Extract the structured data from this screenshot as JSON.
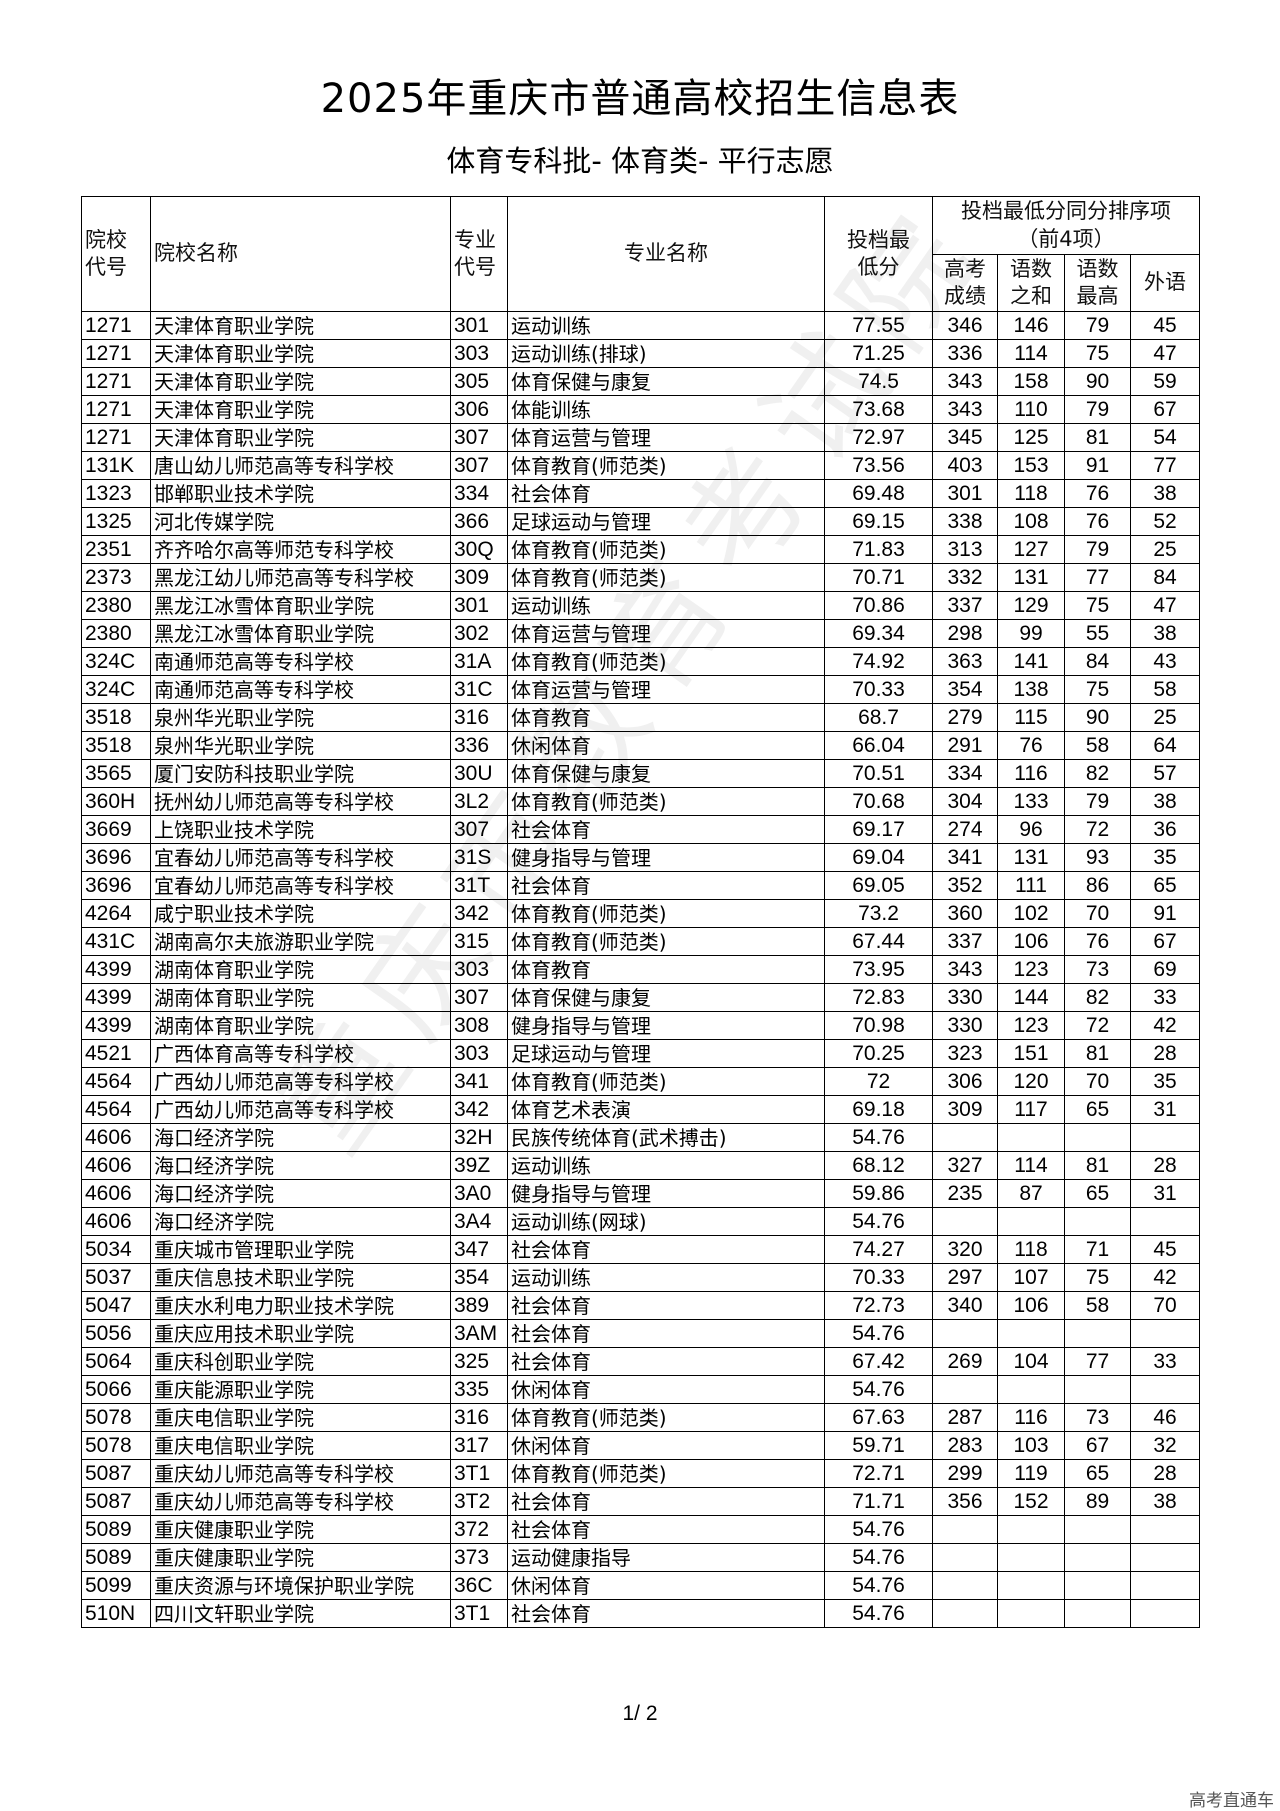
{
  "title": "2025年重庆市普通高校招生信息表",
  "subtitle": "体育专科批- 体育类- 平行志愿",
  "headers": {
    "school_code": "院校代号",
    "school_name": "院校名称",
    "major_code": "专业代号",
    "major_name": "专业名称",
    "min_score": "投档最低分",
    "tiebreak_group": "投档最低分同分排序项（前4项）",
    "gaokao": "高考成绩",
    "chn_math_sum": "语数之和",
    "chn_math_max": "语数最高",
    "foreign": "外语"
  },
  "rows": [
    [
      "1271",
      "天津体育职业学院",
      "301",
      "运动训练",
      "77.55",
      "346",
      "146",
      "79",
      "45"
    ],
    [
      "1271",
      "天津体育职业学院",
      "303",
      "运动训练(排球)",
      "71.25",
      "336",
      "114",
      "75",
      "47"
    ],
    [
      "1271",
      "天津体育职业学院",
      "305",
      "体育保健与康复",
      "74.5",
      "343",
      "158",
      "90",
      "59"
    ],
    [
      "1271",
      "天津体育职业学院",
      "306",
      "体能训练",
      "73.68",
      "343",
      "110",
      "79",
      "67"
    ],
    [
      "1271",
      "天津体育职业学院",
      "307",
      "体育运营与管理",
      "72.97",
      "345",
      "125",
      "81",
      "54"
    ],
    [
      "131K",
      "唐山幼儿师范高等专科学校",
      "307",
      "体育教育(师范类)",
      "73.56",
      "403",
      "153",
      "91",
      "77"
    ],
    [
      "1323",
      "邯郸职业技术学院",
      "334",
      "社会体育",
      "69.48",
      "301",
      "118",
      "76",
      "38"
    ],
    [
      "1325",
      "河北传媒学院",
      "366",
      "足球运动与管理",
      "69.15",
      "338",
      "108",
      "76",
      "52"
    ],
    [
      "2351",
      "齐齐哈尔高等师范专科学校",
      "30Q",
      "体育教育(师范类)",
      "71.83",
      "313",
      "127",
      "79",
      "25"
    ],
    [
      "2373",
      "黑龙江幼儿师范高等专科学校",
      "309",
      "体育教育(师范类)",
      "70.71",
      "332",
      "131",
      "77",
      "84"
    ],
    [
      "2380",
      "黑龙江冰雪体育职业学院",
      "301",
      "运动训练",
      "70.86",
      "337",
      "129",
      "75",
      "47"
    ],
    [
      "2380",
      "黑龙江冰雪体育职业学院",
      "302",
      "体育运营与管理",
      "69.34",
      "298",
      "99",
      "55",
      "38"
    ],
    [
      "324C",
      "南通师范高等专科学校",
      "31A",
      "体育教育(师范类)",
      "74.92",
      "363",
      "141",
      "84",
      "43"
    ],
    [
      "324C",
      "南通师范高等专科学校",
      "31C",
      "体育运营与管理",
      "70.33",
      "354",
      "138",
      "75",
      "58"
    ],
    [
      "3518",
      "泉州华光职业学院",
      "316",
      "体育教育",
      "68.7",
      "279",
      "115",
      "90",
      "25"
    ],
    [
      "3518",
      "泉州华光职业学院",
      "336",
      "休闲体育",
      "66.04",
      "291",
      "76",
      "58",
      "64"
    ],
    [
      "3565",
      "厦门安防科技职业学院",
      "30U",
      "体育保健与康复",
      "70.51",
      "334",
      "116",
      "82",
      "57"
    ],
    [
      "360H",
      "抚州幼儿师范高等专科学校",
      "3L2",
      "体育教育(师范类)",
      "70.68",
      "304",
      "133",
      "79",
      "38"
    ],
    [
      "3669",
      "上饶职业技术学院",
      "307",
      "社会体育",
      "69.17",
      "274",
      "96",
      "72",
      "36"
    ],
    [
      "3696",
      "宜春幼儿师范高等专科学校",
      "31S",
      "健身指导与管理",
      "69.04",
      "341",
      "131",
      "93",
      "35"
    ],
    [
      "3696",
      "宜春幼儿师范高等专科学校",
      "31T",
      "社会体育",
      "69.05",
      "352",
      "111",
      "86",
      "65"
    ],
    [
      "4264",
      "咸宁职业技术学院",
      "342",
      "体育教育(师范类)",
      "73.2",
      "360",
      "102",
      "70",
      "91"
    ],
    [
      "431C",
      "湖南高尔夫旅游职业学院",
      "315",
      "体育教育(师范类)",
      "67.44",
      "337",
      "106",
      "76",
      "67"
    ],
    [
      "4399",
      "湖南体育职业学院",
      "303",
      "体育教育",
      "73.95",
      "343",
      "123",
      "73",
      "69"
    ],
    [
      "4399",
      "湖南体育职业学院",
      "307",
      "体育保健与康复",
      "72.83",
      "330",
      "144",
      "82",
      "33"
    ],
    [
      "4399",
      "湖南体育职业学院",
      "308",
      "健身指导与管理",
      "70.98",
      "330",
      "123",
      "72",
      "42"
    ],
    [
      "4521",
      "广西体育高等专科学校",
      "303",
      "足球运动与管理",
      "70.25",
      "323",
      "151",
      "81",
      "28"
    ],
    [
      "4564",
      "广西幼儿师范高等专科学校",
      "341",
      "体育教育(师范类)",
      "72",
      "306",
      "120",
      "70",
      "35"
    ],
    [
      "4564",
      "广西幼儿师范高等专科学校",
      "342",
      "体育艺术表演",
      "69.18",
      "309",
      "117",
      "65",
      "31"
    ],
    [
      "4606",
      "海口经济学院",
      "32H",
      "民族传统体育(武术搏击)",
      "54.76",
      "",
      "",
      "",
      ""
    ],
    [
      "4606",
      "海口经济学院",
      "39Z",
      "运动训练",
      "68.12",
      "327",
      "114",
      "81",
      "28"
    ],
    [
      "4606",
      "海口经济学院",
      "3A0",
      "健身指导与管理",
      "59.86",
      "235",
      "87",
      "65",
      "31"
    ],
    [
      "4606",
      "海口经济学院",
      "3A4",
      "运动训练(网球)",
      "54.76",
      "",
      "",
      "",
      ""
    ],
    [
      "5034",
      "重庆城市管理职业学院",
      "347",
      "社会体育",
      "74.27",
      "320",
      "118",
      "71",
      "45"
    ],
    [
      "5037",
      "重庆信息技术职业学院",
      "354",
      "运动训练",
      "70.33",
      "297",
      "107",
      "75",
      "42"
    ],
    [
      "5047",
      "重庆水利电力职业技术学院",
      "389",
      "社会体育",
      "72.73",
      "340",
      "106",
      "58",
      "70"
    ],
    [
      "5056",
      "重庆应用技术职业学院",
      "3AM",
      "社会体育",
      "54.76",
      "",
      "",
      "",
      ""
    ],
    [
      "5064",
      "重庆科创职业学院",
      "325",
      "社会体育",
      "67.42",
      "269",
      "104",
      "77",
      "33"
    ],
    [
      "5066",
      "重庆能源职业学院",
      "335",
      "休闲体育",
      "54.76",
      "",
      "",
      "",
      ""
    ],
    [
      "5078",
      "重庆电信职业学院",
      "316",
      "体育教育(师范类)",
      "67.63",
      "287",
      "116",
      "73",
      "46"
    ],
    [
      "5078",
      "重庆电信职业学院",
      "317",
      "休闲体育",
      "59.71",
      "283",
      "103",
      "67",
      "32"
    ],
    [
      "5087",
      "重庆幼儿师范高等专科学校",
      "3T1",
      "体育教育(师范类)",
      "72.71",
      "299",
      "119",
      "65",
      "28"
    ],
    [
      "5087",
      "重庆幼儿师范高等专科学校",
      "3T2",
      "社会体育",
      "71.71",
      "356",
      "152",
      "89",
      "38"
    ],
    [
      "5089",
      "重庆健康职业学院",
      "372",
      "社会体育",
      "54.76",
      "",
      "",
      "",
      ""
    ],
    [
      "5089",
      "重庆健康职业学院",
      "373",
      "运动健康指导",
      "54.76",
      "",
      "",
      "",
      ""
    ],
    [
      "5099",
      "重庆资源与环境保护职业学院",
      "36C",
      "休闲体育",
      "54.76",
      "",
      "",
      "",
      ""
    ],
    [
      "510N",
      "四川文轩职业学院",
      "3T1",
      "社会体育",
      "54.76",
      "",
      "",
      "",
      ""
    ]
  ],
  "page_number": "1/ 2",
  "footer_brand": "高考直通车"
}
